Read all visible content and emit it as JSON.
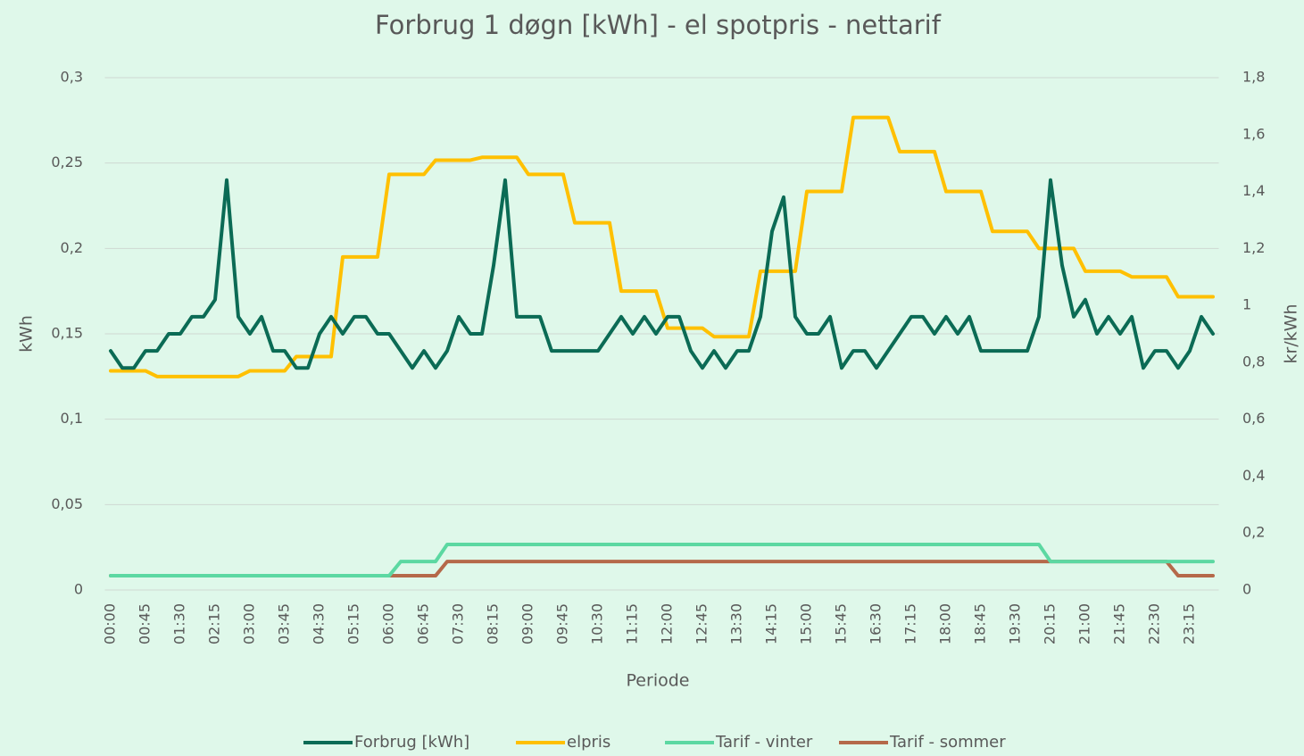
{
  "chart_data": {
    "type": "line",
    "title": "Forbrug 1 døgn [kWh] - el spotpris - nettarif",
    "x_label": "Periode",
    "y_label": "kWh",
    "y2_label": "kr/kWh",
    "categories": [
      "00:00",
      null,
      null,
      "00:45",
      null,
      null,
      "01:30",
      null,
      null,
      "02:15",
      null,
      null,
      "03:00",
      null,
      null,
      "03:45",
      null,
      null,
      "04:30",
      null,
      null,
      "05:15",
      null,
      null,
      "06:00",
      null,
      null,
      "06:45",
      null,
      null,
      "07:30",
      null,
      null,
      "08:15",
      null,
      null,
      "09:00",
      null,
      null,
      "09:45",
      null,
      null,
      "10:30",
      null,
      null,
      "11:15",
      null,
      null,
      "12:00",
      null,
      null,
      "12:45",
      null,
      null,
      "13:30",
      null,
      null,
      "14:15",
      null,
      null,
      "15:00",
      null,
      null,
      "15:45",
      null,
      null,
      "16:30",
      null,
      null,
      "17:15",
      null,
      null,
      "18:00",
      null,
      null,
      "18:45",
      null,
      null,
      "19:30",
      null,
      null,
      "20:15",
      null,
      null,
      "21:00",
      null,
      null,
      "21:45",
      null,
      null,
      "22:30",
      null,
      null,
      "23:15",
      null,
      null
    ],
    "ylim": [
      0,
      0.3
    ],
    "yticks": [
      0,
      {
        "value": 0.05,
        "label": "0,05"
      },
      {
        "value": 0.1,
        "label": "0,1"
      },
      {
        "value": 0.15,
        "label": "0,15"
      },
      {
        "value": 0.2,
        "label": "0,2"
      },
      {
        "value": 0.25,
        "label": "0,25"
      },
      {
        "value": 0.3,
        "label": "0,3"
      }
    ],
    "y2lim": [
      0,
      1.8
    ],
    "y2ticks": [
      0,
      {
        "value": 0.2,
        "label": "0,2"
      },
      {
        "value": 0.4,
        "label": "0,4"
      },
      {
        "value": 0.6,
        "label": "0,6"
      },
      {
        "value": 0.8,
        "label": "0,8"
      },
      {
        "value": 1,
        "label": "1"
      },
      {
        "value": 1.2,
        "label": "1,2"
      },
      {
        "value": 1.4,
        "label": "1,4"
      },
      {
        "value": 1.6,
        "label": "1,6"
      },
      {
        "value": 1.8,
        "label": "1,8"
      }
    ],
    "grid": true,
    "legend": "bottom",
    "series": [
      {
        "name": "Forbrug [kWh]",
        "color": "#0b6b55",
        "values": [
          0.14,
          0.13,
          0.13,
          0.14,
          0.14,
          0.15,
          0.15,
          0.16,
          0.16,
          0.17,
          0.24,
          0.16,
          0.15,
          0.16,
          0.14,
          0.14,
          0.13,
          0.13,
          0.15,
          0.16,
          0.15,
          0.16,
          0.16,
          0.15,
          0.15,
          0.14,
          0.13,
          0.14,
          0.13,
          0.14,
          0.16,
          0.15,
          0.15,
          0.19,
          0.24,
          0.16,
          0.16,
          0.16,
          0.14,
          0.14,
          0.14,
          0.14,
          0.14,
          0.15,
          0.16,
          0.15,
          0.16,
          0.15,
          0.16,
          0.16,
          0.14,
          0.13,
          0.14,
          0.13,
          0.14,
          0.14,
          0.16,
          0.21,
          0.23,
          0.16,
          0.15,
          0.15,
          0.16,
          0.13,
          0.14,
          0.14,
          0.13,
          0.14,
          0.15,
          0.16,
          0.16,
          0.15,
          0.16,
          0.15,
          0.16,
          0.14,
          0.14,
          0.14,
          0.14,
          0.14,
          0.16,
          0.24,
          0.19,
          0.16,
          0.17,
          0.15,
          0.16,
          0.15,
          0.16,
          0.13,
          0.14,
          0.14,
          0.13,
          0.14,
          0.16,
          0.15
        ]
      },
      {
        "name": "elpris",
        "color": "#ffc000",
        "axis": "y2",
        "values": [
          0.77,
          0.77,
          0.77,
          0.77,
          0.75,
          0.75,
          0.75,
          0.75,
          0.75,
          0.75,
          0.75,
          0.75,
          0.77,
          0.77,
          0.77,
          0.77,
          0.82,
          0.82,
          0.82,
          0.82,
          1.17,
          1.17,
          1.17,
          1.17,
          1.46,
          1.46,
          1.46,
          1.46,
          1.51,
          1.51,
          1.51,
          1.51,
          1.52,
          1.52,
          1.52,
          1.52,
          1.46,
          1.46,
          1.46,
          1.46,
          1.29,
          1.29,
          1.29,
          1.29,
          1.05,
          1.05,
          1.05,
          1.05,
          0.92,
          0.92,
          0.92,
          0.92,
          0.89,
          0.89,
          0.89,
          0.89,
          1.12,
          1.12,
          1.12,
          1.12,
          1.4,
          1.4,
          1.4,
          1.4,
          1.66,
          1.66,
          1.66,
          1.66,
          1.54,
          1.54,
          1.54,
          1.54,
          1.4,
          1.4,
          1.4,
          1.4,
          1.26,
          1.26,
          1.26,
          1.26,
          1.2,
          1.2,
          1.2,
          1.2,
          1.12,
          1.12,
          1.12,
          1.12,
          1.1,
          1.1,
          1.1,
          1.1,
          1.03,
          1.03,
          1.03,
          1.03
        ]
      },
      {
        "name": "Tarif - vinter",
        "color": "#5cd8a2",
        "axis": "y2",
        "values": [
          0.05,
          0.05,
          0.05,
          0.05,
          0.05,
          0.05,
          0.05,
          0.05,
          0.05,
          0.05,
          0.05,
          0.05,
          0.05,
          0.05,
          0.05,
          0.05,
          0.05,
          0.05,
          0.05,
          0.05,
          0.05,
          0.05,
          0.05,
          0.05,
          0.05,
          0.1,
          0.1,
          0.1,
          0.1,
          0.16,
          0.16,
          0.16,
          0.16,
          0.16,
          0.16,
          0.16,
          0.16,
          0.16,
          0.16,
          0.16,
          0.16,
          0.16,
          0.16,
          0.16,
          0.16,
          0.16,
          0.16,
          0.16,
          0.16,
          0.16,
          0.16,
          0.16,
          0.16,
          0.16,
          0.16,
          0.16,
          0.16,
          0.16,
          0.16,
          0.16,
          0.16,
          0.16,
          0.16,
          0.16,
          0.16,
          0.16,
          0.16,
          0.16,
          0.16,
          0.16,
          0.16,
          0.16,
          0.16,
          0.16,
          0.16,
          0.16,
          0.16,
          0.16,
          0.16,
          0.16,
          0.16,
          0.1,
          0.1,
          0.1,
          0.1,
          0.1,
          0.1,
          0.1,
          0.1,
          0.1,
          0.1,
          0.1,
          0.1,
          0.1,
          0.1,
          0.1
        ]
      },
      {
        "name": "Tarif - sommer",
        "color": "#b5694a",
        "axis": "y2",
        "values": [
          0.05,
          0.05,
          0.05,
          0.05,
          0.05,
          0.05,
          0.05,
          0.05,
          0.05,
          0.05,
          0.05,
          0.05,
          0.05,
          0.05,
          0.05,
          0.05,
          0.05,
          0.05,
          0.05,
          0.05,
          0.05,
          0.05,
          0.05,
          0.05,
          0.05,
          0.05,
          0.05,
          0.05,
          0.05,
          0.1,
          0.1,
          0.1,
          0.1,
          0.1,
          0.1,
          0.1,
          0.1,
          0.1,
          0.1,
          0.1,
          0.1,
          0.1,
          0.1,
          0.1,
          0.1,
          0.1,
          0.1,
          0.1,
          0.1,
          0.1,
          0.1,
          0.1,
          0.1,
          0.1,
          0.1,
          0.1,
          0.1,
          0.1,
          0.1,
          0.1,
          0.1,
          0.1,
          0.1,
          0.1,
          0.1,
          0.1,
          0.1,
          0.1,
          0.1,
          0.1,
          0.1,
          0.1,
          0.1,
          0.1,
          0.1,
          0.1,
          0.1,
          0.1,
          0.1,
          0.1,
          0.1,
          0.1,
          0.1,
          0.1,
          0.1,
          0.1,
          0.1,
          0.1,
          0.1,
          0.1,
          0.1,
          0.1,
          0.05,
          0.05,
          0.05,
          0.05
        ]
      }
    ]
  }
}
